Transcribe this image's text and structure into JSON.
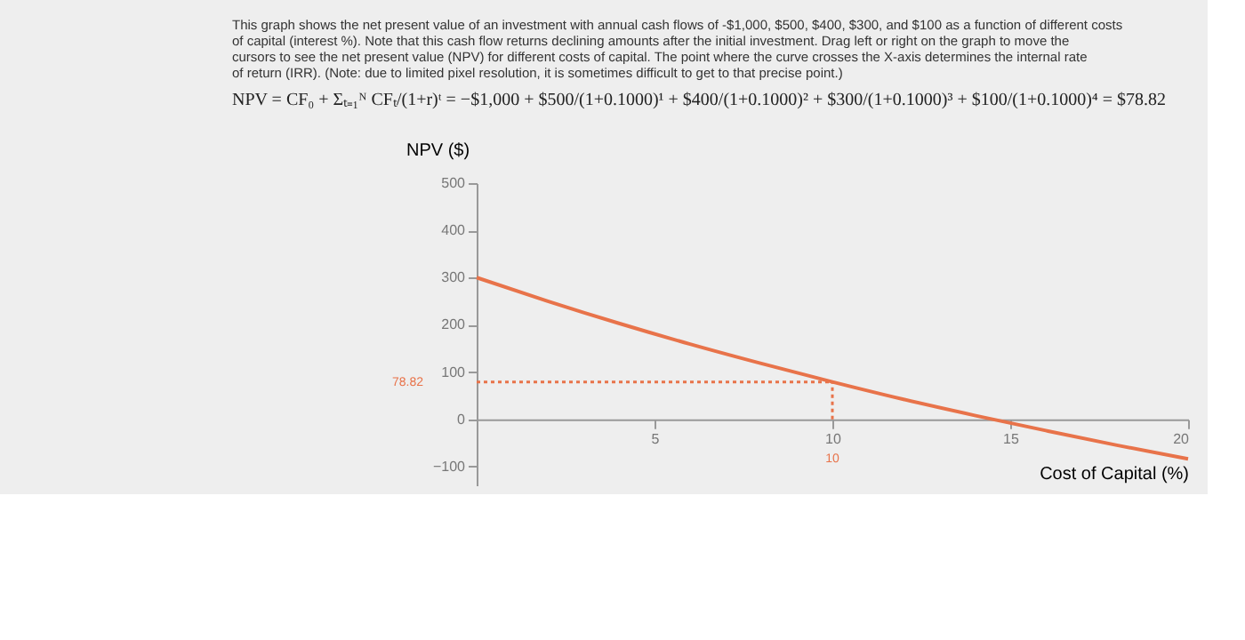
{
  "chart_data": {
    "type": "line",
    "title": "This graph shows the net present value of an investment with annual cash flows of -$1,000, $500, $400, $300, and $100 as a function of different costs of capital (interest %). Note that this cash flow returns declining amounts after the initial investment. Drag left or right on the graph to move the cursors to see the net present value (NPV) for different costs of capital. The point where the curve crosses the X-axis determines the internal rate of return (IRR). (Note: due to limited pixel resolution, it is sometimes difficult to get to that precise point.)",
    "subtitle": "NPV = CF₀ + Σₜ₌₁ᴺ CFₜ/(1+r)ᵗ = −$1,000 + $500/(1+0.1000)¹ + $400/(1+0.1000)² + $300/(1+0.1000)³ + $100/(1+0.1000)⁴ = $78.82",
    "xlabel": "Cost of Capital (%)",
    "ylabel": "NPV ($)",
    "x": [
      0,
      2,
      4,
      6,
      8,
      10,
      12,
      14,
      16,
      18,
      20
    ],
    "series": [
      {
        "color": "#e8734a",
        "values": [
          300,
          250,
          203,
          159,
          118,
          79,
          42,
          8,
          -24,
          -55,
          -84
        ]
      }
    ],
    "xlim": [
      0,
      20
    ],
    "xticks": [
      5,
      10,
      15,
      20
    ],
    "ylim": [
      -140,
      500
    ],
    "yticks": [
      -100,
      0,
      100,
      200,
      300,
      400,
      500
    ],
    "ref_lines": [
      {
        "axis": "y",
        "value": 78.82,
        "label": "78.82",
        "color": "#e8734a",
        "line_style": "dotted"
      },
      {
        "axis": "x",
        "value": 10,
        "label": "10",
        "color": "#e8734a",
        "line_style": "dotted"
      }
    ],
    "grid": false,
    "marker": "none",
    "line_style": "solid"
  }
}
